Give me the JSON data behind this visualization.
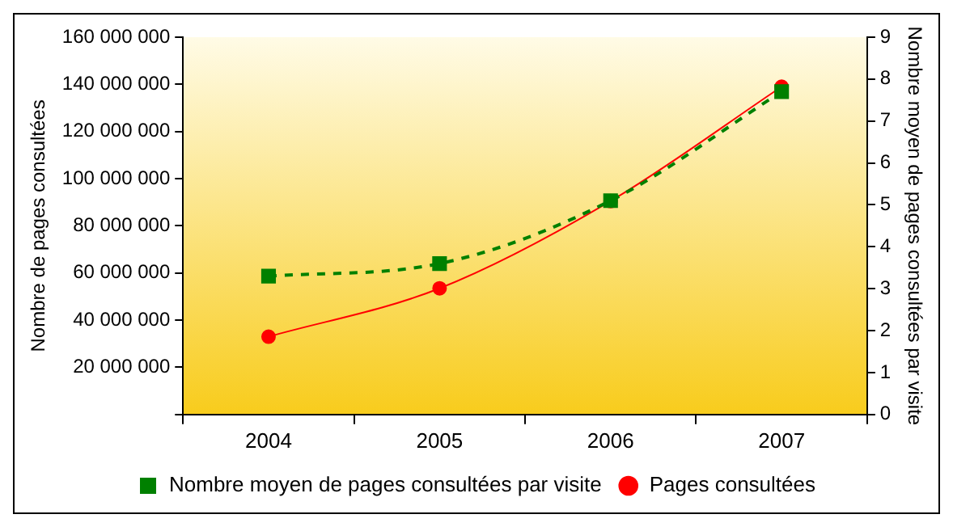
{
  "chart_data": {
    "type": "line",
    "categories": [
      "2004",
      "2005",
      "2006",
      "2007"
    ],
    "series": [
      {
        "name": "Pages consultées",
        "color": "#ff0000",
        "values": [
          33000000,
          53500000,
          90500000,
          139000000
        ],
        "marker": "circle",
        "line_style": "solid"
      },
      {
        "name": "Nombre moyen de pages consultées par visite",
        "color": "#008000",
        "values": [
          3.3,
          3.6,
          5.1,
          7.7
        ],
        "axis": "y2",
        "marker": "square",
        "line_style": "dashed"
      }
    ],
    "ylabel": "Nombre de pages consultées",
    "y2label": "Nombre moyen de pages consultées par visite",
    "ylim": [
      0,
      160000000
    ],
    "yticks": [
      {
        "value": 0,
        "label": null
      },
      {
        "value": 20000000,
        "label": "20 000 000"
      },
      {
        "value": 40000000,
        "label": "40 000 000"
      },
      {
        "value": 60000000,
        "label": "60 000 000"
      },
      {
        "value": 80000000,
        "label": "80 000 000"
      },
      {
        "value": 100000000,
        "label": "100 000 000"
      },
      {
        "value": 120000000,
        "label": "120 000 000"
      },
      {
        "value": 140000000,
        "label": "140 000 000"
      },
      {
        "value": 160000000,
        "label": "160 000 000"
      }
    ],
    "y2lim": [
      0,
      9
    ],
    "y2ticks": [
      0,
      1,
      2,
      3,
      4,
      5,
      6,
      7,
      8,
      9
    ],
    "grid": false,
    "legend": "bottom"
  }
}
